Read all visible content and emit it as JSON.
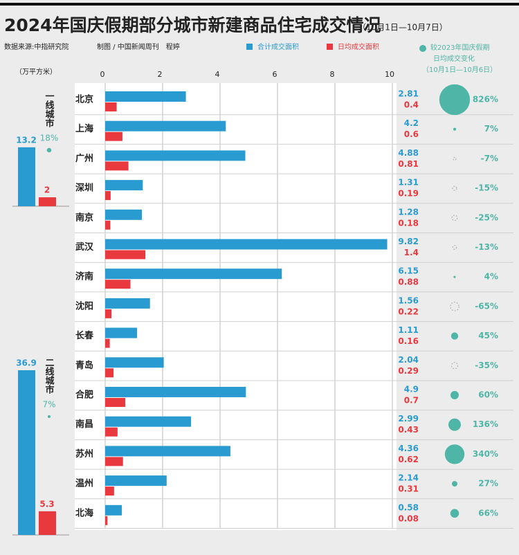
{
  "header": {
    "title": "2024年国庆假期部分城市新建商品住宅成交情况",
    "subtitle": "（10月1日—10月7日）",
    "source": "数据来源:中指研究院",
    "credit": "制图 / 中国新闻周刊　程婷"
  },
  "chart_data": [
    {
      "type": "hbar",
      "categories": [
        "北京",
        "上海",
        "广州",
        "深圳",
        "南京",
        "武汉",
        "济南",
        "沈阳",
        "长春",
        "青岛",
        "合肥",
        "南昌",
        "苏州",
        "温州",
        "北海"
      ],
      "series": [
        {
          "name": "合计成交面积",
          "color": "#2a9bd0",
          "values": [
            2.81,
            4.2,
            4.88,
            1.31,
            1.28,
            9.82,
            6.15,
            1.56,
            1.11,
            2.04,
            4.9,
            2.99,
            4.36,
            2.14,
            0.58
          ]
        },
        {
          "name": "日均成交面积",
          "color": "#e8393f",
          "values": [
            0.4,
            0.6,
            0.81,
            0.19,
            0.18,
            1.4,
            0.88,
            0.22,
            0.16,
            0.29,
            0.7,
            0.43,
            0.62,
            0.31,
            0.08
          ]
        }
      ],
      "xlim": [
        0,
        10
      ],
      "xticks": [
        0,
        2,
        4,
        6,
        8,
        10
      ],
      "grid": true,
      "change": {
        "name": [
          "较2023年国庆假期",
          "日均成交变化"
        ],
        "period": "（10月1日—10月6日）",
        "color": "#4fb5a6",
        "values": [
          826,
          7,
          -7,
          -15,
          -25,
          -13,
          4,
          -65,
          45,
          -35,
          60,
          136,
          340,
          27,
          66
        ],
        "value_labels": [
          "826%",
          "7%",
          "-7%",
          "-15%",
          "-25%",
          "-13%",
          "4%",
          "-65%",
          "45%",
          "-35%",
          "60%",
          "136%",
          "340%",
          "27%",
          "66%"
        ]
      }
    },
    {
      "type": "tier",
      "unit": "（万平方米）",
      "colors": [
        "#2a9bd0",
        "#e8393f"
      ],
      "change_color": "#4fb5a6",
      "groups": [
        {
          "name": "一线城市",
          "values": [
            13.2,
            2
          ],
          "change": 18,
          "change_label": "18%"
        },
        {
          "name": "二线城市",
          "values": [
            36.9,
            5.3
          ],
          "change": 7,
          "change_label": "7%"
        }
      ]
    }
  ]
}
